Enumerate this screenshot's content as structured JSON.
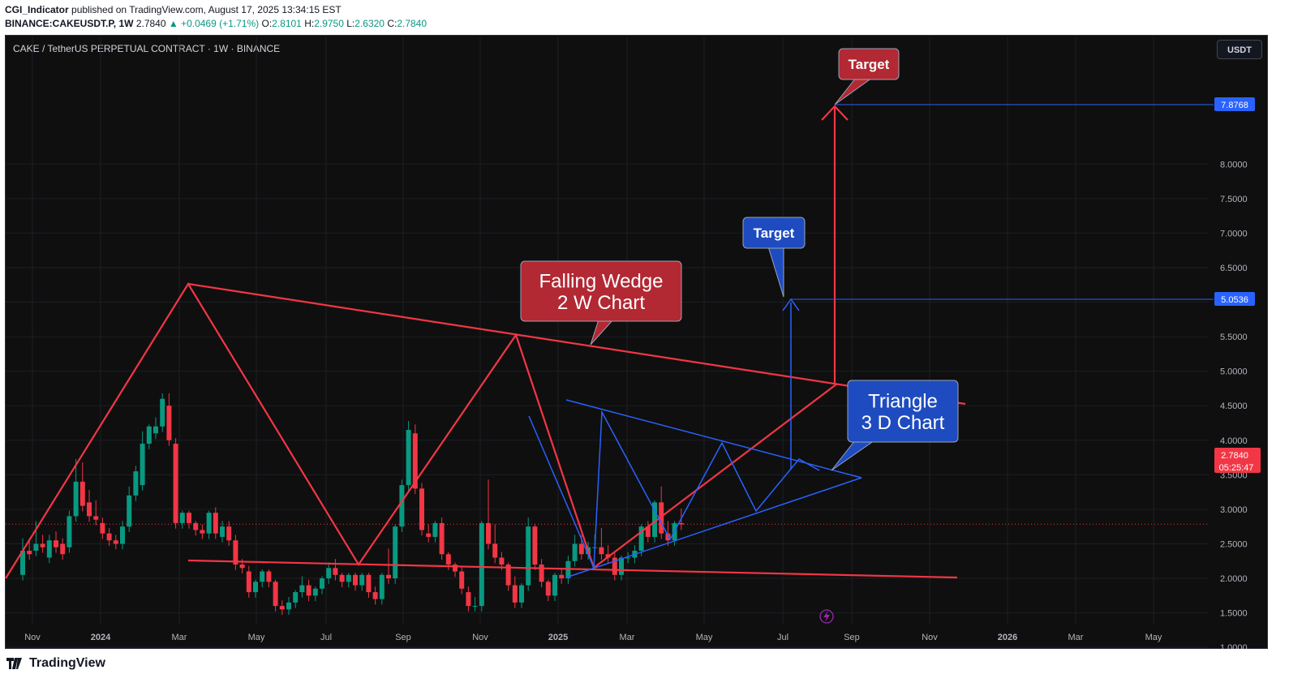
{
  "header": {
    "author": "CGI_Indicator",
    "published_text": "published on TradingView.com, August 17, 2025 13:34:15 EST",
    "symbol": "BINANCE:CAKEUSDT.P, 1W",
    "last": "2.7840",
    "change": "▲ +0.0469 (+1.71%)",
    "o_label": "O:",
    "o_value": "2.8101",
    "h_label": "H:",
    "h_value": "2.9750",
    "l_label": "L:",
    "l_value": "2.6320",
    "c_label": "C:",
    "c_value": "2.7840"
  },
  "chart_title": "CAKE / TetherUS PERPETUAL CONTRACT · 1W · BINANCE",
  "currency_button": "USDT",
  "footer": {
    "brand": "TradingView"
  },
  "colors": {
    "up": "#089981",
    "down": "#f23645",
    "red_line": "#f23645",
    "blue_line": "#2962ff",
    "background": "#0f0f0f"
  },
  "icons": [
    "tradingview-logo-icon",
    "lightning-icon"
  ],
  "chart_data": {
    "type": "candlestick",
    "title": "CAKE / TetherUS PERPETUAL CONTRACT · 1W · BINANCE",
    "ylim": [
      0.3,
      8.7
    ],
    "y_ticks": [
      0.5,
      1.0,
      1.5,
      2.0,
      2.5,
      3.0,
      3.5,
      4.0,
      4.5,
      5.0,
      5.5,
      6.0,
      6.5,
      7.0,
      7.5,
      8.0
    ],
    "x_ticks": [
      "Nov",
      "2024",
      "Mar",
      "May",
      "Jul",
      "Sep",
      "Nov",
      "2025",
      "Mar",
      "May",
      "Jul",
      "Sep",
      "Nov",
      "2026",
      "Mar",
      "May"
    ],
    "price_badges": [
      {
        "value": "7.8768",
        "price": 7.8768
      },
      {
        "value": "5.0536",
        "price": 5.0536
      },
      {
        "value": "2.7840",
        "price": 2.784,
        "countdown": "05:25:47"
      }
    ],
    "annotations": [
      {
        "text": "Target",
        "color": "red"
      },
      {
        "text": "Target",
        "color": "blue"
      },
      {
        "text": "Falling Wedge\n2 W Chart",
        "color": "red"
      },
      {
        "text": "Triangle\n3 D Chart",
        "color": "blue"
      }
    ],
    "candles": [
      [
        2.05,
        2.55,
        2.4
      ],
      [
        2.4,
        2.55,
        2.35
      ],
      [
        2.4,
        2.8,
        2.5
      ],
      [
        2.5,
        2.6,
        2.45
      ],
      [
        2.3,
        2.6,
        2.55
      ],
      [
        2.55,
        2.65,
        2.45
      ],
      [
        2.5,
        2.55,
        2.35
      ],
      [
        2.45,
        2.95,
        2.9
      ],
      [
        2.9,
        3.7,
        3.4
      ],
      [
        3.4,
        3.65,
        3.05
      ],
      [
        3.1,
        3.25,
        2.9
      ],
      [
        2.9,
        3.1,
        2.85
      ],
      [
        2.8,
        2.85,
        2.65
      ],
      [
        2.65,
        2.7,
        2.55
      ],
      [
        2.55,
        2.6,
        2.5
      ],
      [
        2.5,
        2.8,
        2.75
      ],
      [
        2.75,
        3.3,
        3.2
      ],
      [
        3.2,
        3.6,
        3.55
      ],
      [
        3.35,
        4.1,
        3.95
      ],
      [
        3.95,
        4.2,
        4.2
      ],
      [
        4.1,
        4.3,
        4.2
      ],
      [
        4.2,
        4.65,
        4.6
      ],
      [
        4.5,
        4.65,
        4.0
      ],
      [
        3.95,
        4.0,
        2.8
      ],
      [
        2.8,
        2.95,
        2.95
      ],
      [
        2.95,
        2.95,
        2.8
      ],
      [
        2.8,
        2.8,
        2.7
      ],
      [
        2.7,
        2.75,
        2.65
      ],
      [
        2.65,
        2.9,
        2.95
      ],
      [
        2.95,
        3.0,
        2.65
      ],
      [
        2.6,
        2.8,
        2.75
      ],
      [
        2.75,
        2.8,
        2.55
      ],
      [
        2.55,
        2.6,
        2.2
      ],
      [
        2.2,
        2.25,
        2.15
      ],
      [
        2.1,
        2.15,
        1.8
      ],
      [
        1.8,
        1.85,
        1.95
      ],
      [
        1.95,
        2.1,
        2.1
      ],
      [
        2.1,
        2.1,
        1.95
      ],
      [
        1.95,
        1.95,
        1.6
      ],
      [
        1.6,
        1.65,
        1.55
      ],
      [
        1.55,
        1.7,
        1.65
      ],
      [
        1.65,
        1.8,
        1.8
      ],
      [
        1.8,
        2.0,
        1.9
      ],
      [
        1.9,
        1.95,
        1.75
      ],
      [
        1.75,
        1.8,
        1.85
      ],
      [
        1.85,
        2.0,
        2.0
      ],
      [
        2.0,
        2.2,
        2.15
      ],
      [
        2.15,
        2.25,
        2.05
      ],
      [
        2.05,
        2.05,
        1.95
      ],
      [
        1.95,
        2.05,
        2.05
      ],
      [
        2.05,
        2.05,
        1.9
      ],
      [
        1.9,
        2.05,
        2.05
      ],
      [
        2.05,
        2.05,
        1.8
      ],
      [
        1.8,
        1.85,
        1.7
      ],
      [
        1.7,
        1.75,
        2.05
      ],
      [
        2.05,
        2.4,
        2.0
      ],
      [
        2.0,
        2.75,
        2.75
      ],
      [
        2.75,
        3.4,
        3.35
      ],
      [
        3.35,
        4.25,
        4.15
      ],
      [
        4.1,
        4.2,
        3.3
      ],
      [
        3.3,
        3.35,
        2.7
      ],
      [
        2.65,
        2.75,
        2.6
      ],
      [
        2.6,
        2.8,
        2.8
      ],
      [
        2.8,
        2.85,
        2.35
      ],
      [
        2.35,
        2.35,
        2.2
      ],
      [
        2.2,
        2.2,
        2.1
      ],
      [
        2.1,
        2.15,
        1.85
      ],
      [
        1.8,
        1.85,
        1.6
      ],
      [
        1.6,
        1.7,
        1.6
      ],
      [
        1.6,
        1.95,
        2.8
      ],
      [
        2.8,
        3.4,
        2.5
      ],
      [
        2.5,
        2.75,
        2.3
      ],
      [
        2.3,
        2.35,
        2.2
      ],
      [
        2.2,
        2.2,
        1.9
      ],
      [
        1.9,
        2.0,
        1.65
      ],
      [
        1.65,
        1.85,
        1.9
      ],
      [
        1.9,
        2.85,
        2.75
      ],
      [
        2.75,
        2.75,
        2.2
      ],
      [
        2.2,
        2.25,
        1.95
      ],
      [
        1.95,
        1.95,
        1.75
      ],
      [
        1.75,
        2.05,
        2.05
      ],
      [
        2.05,
        2.1,
        2.0
      ],
      [
        2.0,
        2.3,
        2.25
      ],
      [
        2.25,
        2.6,
        2.5
      ],
      [
        2.5,
        2.6,
        2.35
      ],
      [
        2.35,
        2.5,
        2.45
      ],
      [
        2.45,
        2.6,
        2.45
      ],
      [
        2.45,
        2.7,
        2.35
      ],
      [
        2.35,
        2.45,
        2.3
      ],
      [
        2.3,
        2.35,
        2.05
      ],
      [
        2.05,
        2.3,
        2.3
      ],
      [
        2.3,
        2.35,
        2.3
      ],
      [
        2.3,
        2.45,
        2.4
      ],
      [
        2.4,
        2.75,
        2.75
      ],
      [
        2.75,
        2.8,
        2.6
      ],
      [
        2.6,
        2.7,
        3.1
      ],
      [
        3.1,
        3.3,
        2.65
      ],
      [
        2.65,
        2.8,
        2.55
      ],
      [
        2.55,
        2.8,
        2.8
      ],
      [
        2.8,
        2.98,
        2.78
      ]
    ]
  }
}
